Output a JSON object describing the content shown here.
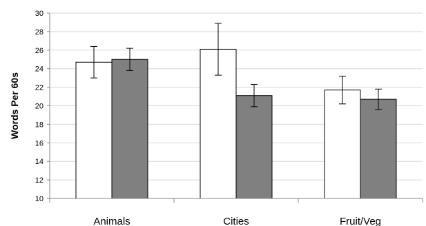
{
  "chart_data": {
    "type": "bar",
    "title": "",
    "xlabel": "",
    "ylabel": "Words Per 60s",
    "ylim": [
      10,
      30
    ],
    "yticks": [
      10,
      12,
      14,
      16,
      18,
      20,
      22,
      24,
      26,
      28,
      30
    ],
    "grid": true,
    "legend": "none",
    "categories": [
      "Animals",
      "Cities",
      "Fruit/Veg"
    ],
    "series": [
      {
        "values": [
          24.7,
          26.1,
          21.7
        ],
        "error": [
          1.7,
          2.8,
          1.5
        ],
        "color": "#ffffff"
      },
      {
        "values": [
          25.0,
          21.1,
          20.7
        ],
        "error": [
          1.2,
          1.2,
          1.1
        ],
        "color": "#808080"
      }
    ]
  }
}
